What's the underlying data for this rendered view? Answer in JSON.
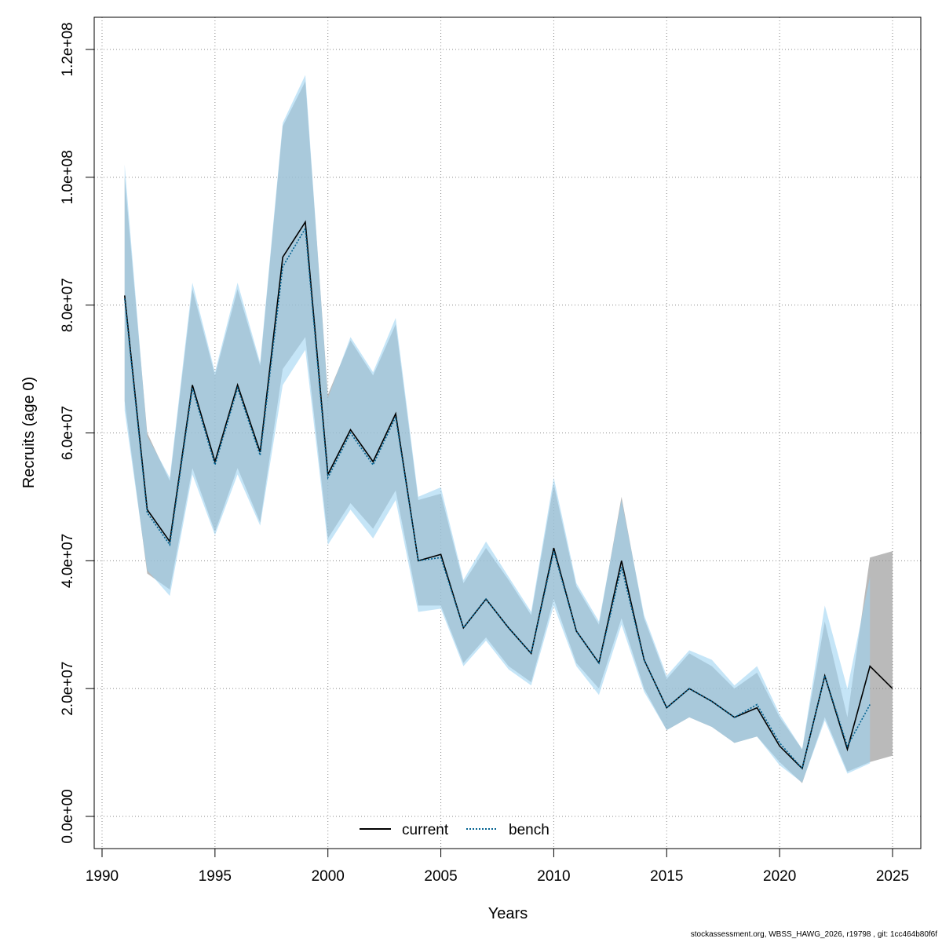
{
  "chart_data": {
    "type": "line",
    "xlabel": "Years",
    "ylabel": "Recruits (age 0)",
    "xlim": [
      1990,
      2025
    ],
    "ylim": [
      0,
      120000000
    ],
    "x_ticks": [
      1990,
      1995,
      2000,
      2005,
      2010,
      2015,
      2020,
      2025
    ],
    "x_tick_labels": [
      "1990",
      "1995",
      "2000",
      "2005",
      "2010",
      "2015",
      "2020",
      "2025"
    ],
    "y_ticks": [
      0,
      20000000,
      40000000,
      60000000,
      80000000,
      100000000,
      120000000
    ],
    "y_tick_labels": [
      "0.0e+00",
      "2.0e+07",
      "4.0e+07",
      "6.0e+07",
      "8.0e+07",
      "1.0e+08",
      "1.2e+08"
    ],
    "grid": true,
    "legend_position": "bottom-center",
    "series": [
      {
        "name": "current",
        "line_color": "#000000",
        "line_style": "solid",
        "band_color": "#8c8c8c",
        "x": [
          1991,
          1992,
          1993,
          1994,
          1995,
          1996,
          1997,
          1998,
          1999,
          2000,
          2001,
          2002,
          2003,
          2004,
          2005,
          2006,
          2007,
          2008,
          2009,
          2010,
          2011,
          2012,
          2013,
          2014,
          2015,
          2016,
          2017,
          2018,
          2019,
          2020,
          2021,
          2022,
          2023,
          2024,
          2025
        ],
        "values": [
          81500000,
          48000000,
          43000000,
          67500000,
          55500000,
          67500000,
          57000000,
          87500000,
          93000000,
          53500000,
          60500000,
          55500000,
          63000000,
          40000000,
          41000000,
          29500000,
          34000000,
          29500000,
          25500000,
          42000000,
          29000000,
          24000000,
          40000000,
          24500000,
          17000000,
          20000000,
          18000000,
          15500000,
          17000000,
          11000000,
          7500000,
          22000000,
          10500000,
          23500000,
          20000000
        ],
        "lower": [
          65000000,
          38000000,
          35500000,
          54500000,
          44500000,
          54500000,
          46000000,
          70000000,
          75000000,
          43500000,
          49000000,
          45000000,
          51000000,
          33000000,
          33000000,
          24000000,
          28000000,
          23500000,
          21000000,
          34000000,
          24000000,
          20000000,
          31000000,
          20000000,
          13500000,
          15500000,
          14000000,
          11500000,
          12500000,
          8500000,
          5200000,
          15500000,
          7000000,
          8500000,
          9500000
        ],
        "upper": [
          100000000,
          60000000,
          52500000,
          82500000,
          69000000,
          82500000,
          70500000,
          108000000,
          115000000,
          66000000,
          74500000,
          69000000,
          77000000,
          49500000,
          50500000,
          36500000,
          42000000,
          37000000,
          31500000,
          52000000,
          36000000,
          30000000,
          50000000,
          31000000,
          21500000,
          25500000,
          23500000,
          20000000,
          22500000,
          15500000,
          10500000,
          30500000,
          15500000,
          40500000,
          41500000
        ]
      },
      {
        "name": "bench",
        "line_color": "#00608f",
        "line_style": "dotted",
        "band_color": "#9fd3f2",
        "x": [
          1991,
          1992,
          1993,
          1994,
          1995,
          1996,
          1997,
          1998,
          1999,
          2000,
          2001,
          2002,
          2003,
          2004,
          2005,
          2006,
          2007,
          2008,
          2009,
          2010,
          2011,
          2012,
          2013,
          2014,
          2015,
          2016,
          2017,
          2018,
          2019,
          2020,
          2021,
          2022,
          2023,
          2024
        ],
        "values": [
          81000000,
          47500000,
          42500000,
          67000000,
          55000000,
          67000000,
          56500000,
          86000000,
          92000000,
          53000000,
          60000000,
          55000000,
          62500000,
          40000000,
          40500000,
          29500000,
          34000000,
          29500000,
          25500000,
          41500000,
          29000000,
          24000000,
          39000000,
          24500000,
          17000000,
          20000000,
          18000000,
          15500000,
          17500000,
          11500000,
          7500000,
          22000000,
          11000000,
          17500000
        ],
        "lower": [
          63500000,
          38500000,
          34500000,
          53500000,
          44000000,
          53500000,
          45500000,
          67500000,
          73000000,
          42500000,
          48000000,
          43500000,
          49500000,
          32000000,
          32500000,
          23500000,
          27500000,
          23000000,
          20500000,
          33000000,
          23500000,
          19000000,
          30000000,
          19500000,
          13500000,
          15500000,
          14000000,
          11500000,
          12500000,
          8000000,
          5300000,
          15000000,
          6700000,
          8300000
        ],
        "upper": [
          102000000,
          59500000,
          53000000,
          83500000,
          69500000,
          83500000,
          71000000,
          108500000,
          116000000,
          65500000,
          75000000,
          69500000,
          78000000,
          50000000,
          51500000,
          37000000,
          43000000,
          37500000,
          32000000,
          53000000,
          36500000,
          30500000,
          49500000,
          31500000,
          22000000,
          26000000,
          24500000,
          20500000,
          23500000,
          16000000,
          10500000,
          33000000,
          20000000,
          37500000
        ]
      }
    ]
  },
  "footer_text": "stockassessment.org, WBSS_HAWG_2026, r19798 , git: 1cc464b80f6f"
}
